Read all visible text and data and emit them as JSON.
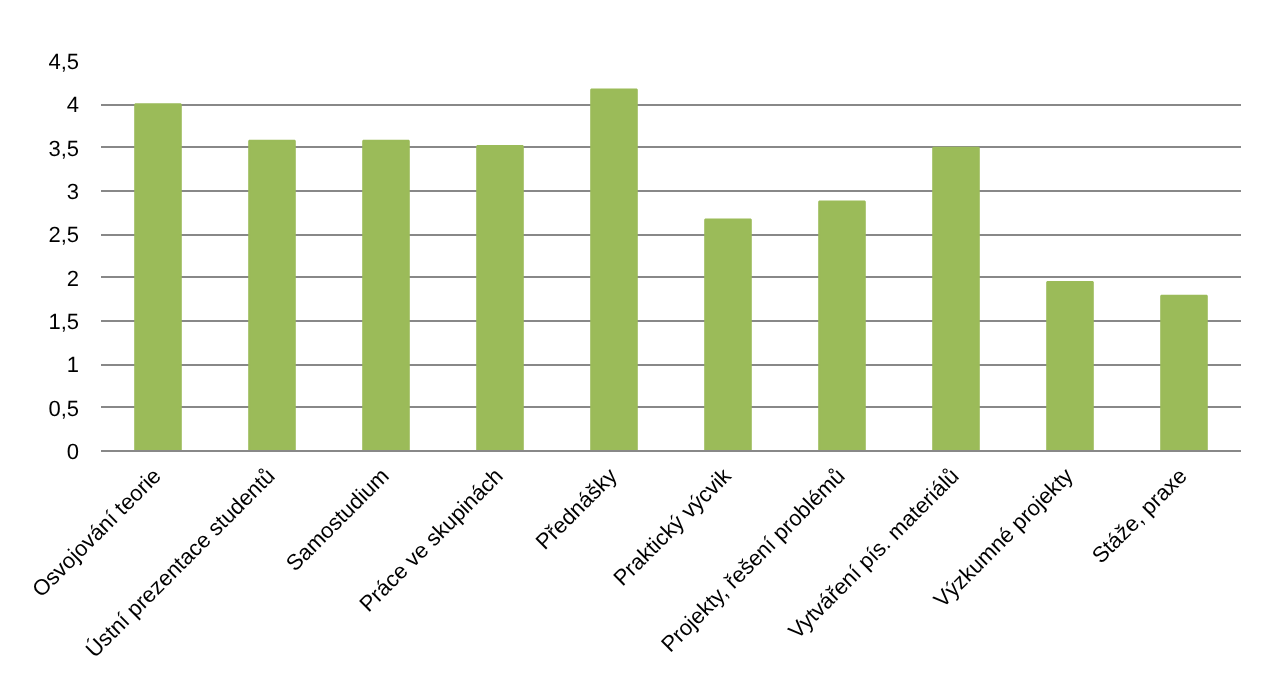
{
  "chart_data": {
    "type": "bar",
    "categories": [
      "Osvojování teorie",
      "Ústní prezentace studentů",
      "Samostudium",
      "Práce ve skupinách",
      "Přednášky",
      "Praktický výcvik",
      "Projekty, řešení problémů",
      "Vytváření pís. materiálů",
      "Výzkumné projekty",
      "Stáže, praxe"
    ],
    "values": [
      4.0,
      3.58,
      3.58,
      3.52,
      4.17,
      2.67,
      2.88,
      3.5,
      1.95,
      1.79
    ],
    "color": "#9bbb59",
    "ylim": [
      0,
      4.5
    ],
    "yticks": [
      0,
      {
        "value": 0.5,
        "label": "0,5"
      },
      1,
      {
        "value": 1.5,
        "label": "1,5"
      },
      2,
      {
        "value": 2.5,
        "label": "2,5"
      },
      3,
      {
        "value": 3.5,
        "label": "3,5"
      },
      4,
      {
        "value": 4.5,
        "label": "4,5"
      }
    ],
    "grid": "y"
  }
}
